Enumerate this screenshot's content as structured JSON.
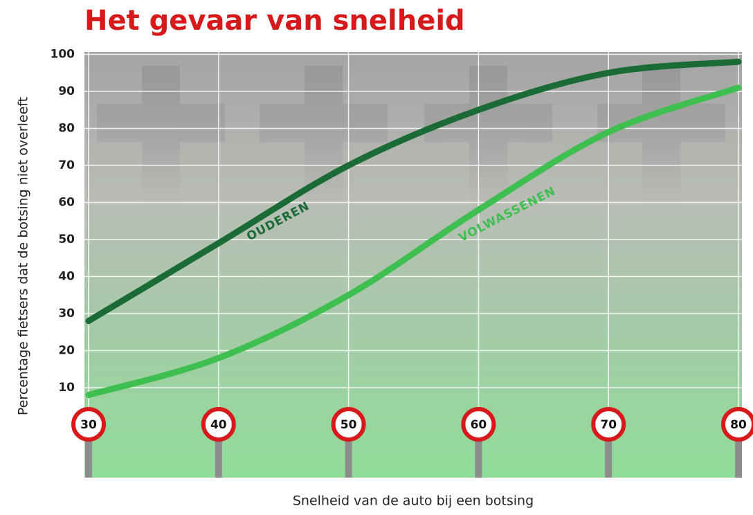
{
  "chart_data": {
    "type": "line",
    "title": "Het gevaar van snelheid",
    "x_label": "Snelheid van de auto bij een botsing",
    "y_label": "Percentage fietsers dat de botsing niet overleeft",
    "x": [
      30,
      40,
      50,
      60,
      70,
      80
    ],
    "series": [
      {
        "name": "OUDEREN",
        "color": "#1a6b35",
        "values": [
          28,
          49,
          70,
          85,
          95,
          98
        ]
      },
      {
        "name": "VOLWASSENEN",
        "color": "#3fbf4f",
        "values": [
          8,
          18,
          35,
          58,
          79,
          91
        ]
      }
    ],
    "xlim": [
      30,
      80
    ],
    "xticks": [
      30,
      40,
      50,
      60,
      70,
      80
    ],
    "ylim": [
      0,
      100
    ],
    "yticks": [
      10,
      20,
      30,
      40,
      50,
      60,
      70,
      80,
      90,
      100
    ],
    "grid": true
  }
}
